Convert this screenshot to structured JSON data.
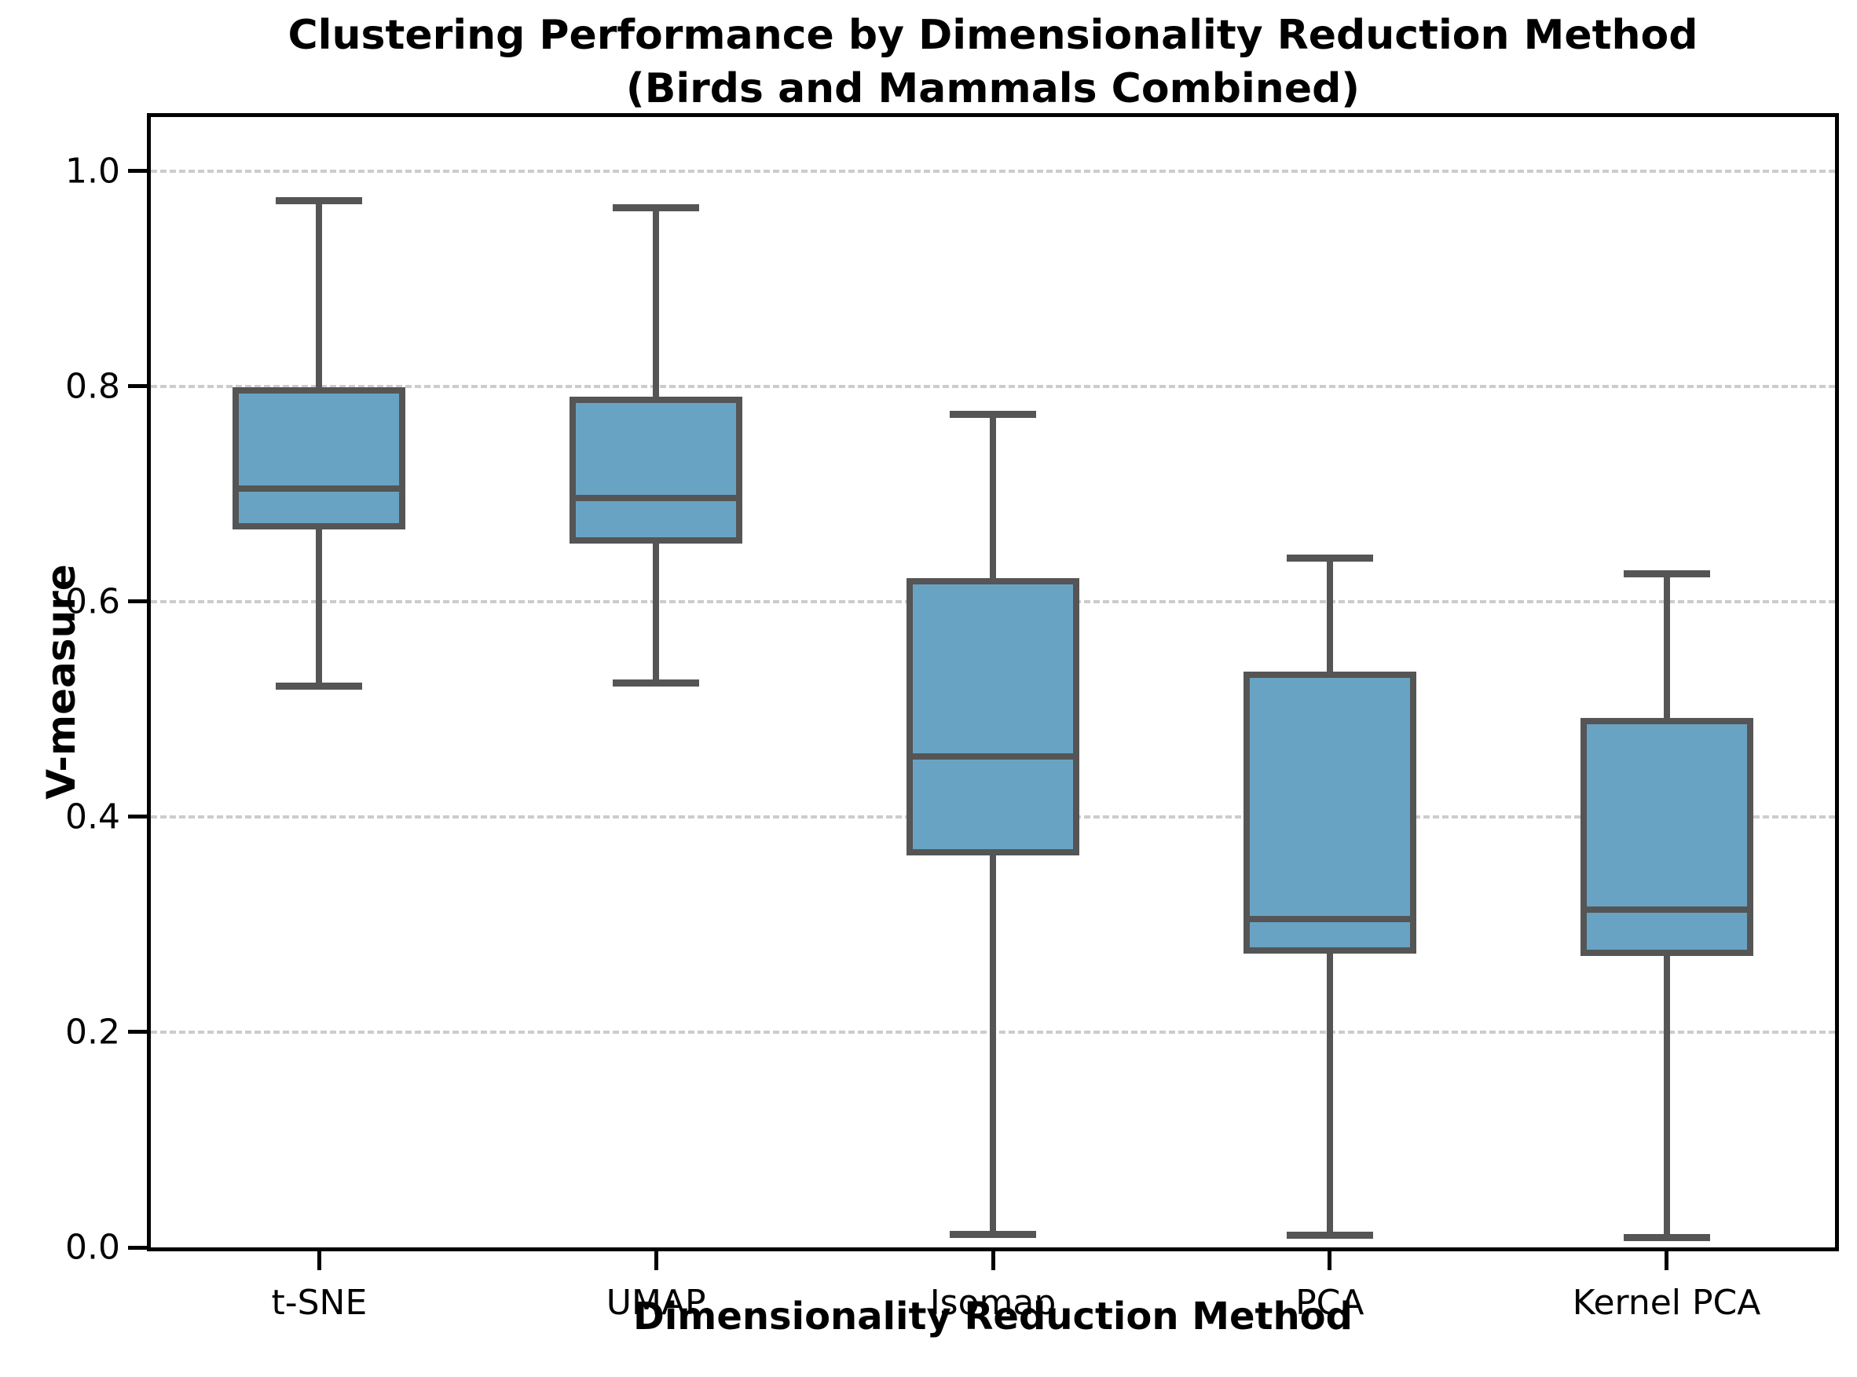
{
  "header": {
    "title_line1": "Clustering Performance by Dimensionality Reduction Method",
    "title_line2": "(Birds and Mammals Combined)"
  },
  "axes": {
    "y_label": "V-measure",
    "x_label": "Dimensionality Reduction Method",
    "y_ticks": [
      {
        "value": 0.0,
        "label": "0.0"
      },
      {
        "value": 0.2,
        "label": "0.2"
      },
      {
        "value": 0.4,
        "label": "0.4"
      },
      {
        "value": 0.6,
        "label": "0.6"
      },
      {
        "value": 0.8,
        "label": "0.8"
      },
      {
        "value": 1.0,
        "label": "1.0"
      }
    ]
  },
  "chart_data": {
    "type": "boxplot",
    "title": "Clustering Performance by Dimensionality Reduction Method (Birds and Mammals Combined)",
    "xlabel": "Dimensionality Reduction Method",
    "ylabel": "V-measure",
    "ylim": [
      0,
      1.05
    ],
    "grid": "horizontal-dashed",
    "legend": "none",
    "outliers": "none",
    "categories": [
      "t-SNE",
      "UMAP",
      "Isomap",
      "PCA",
      "Kernel PCA"
    ],
    "boxes": [
      {
        "label": "t-SNE",
        "whisker_low": 0.521,
        "q1": 0.667,
        "median": 0.705,
        "q3": 0.799,
        "whisker_high": 0.972
      },
      {
        "label": "UMAP",
        "whisker_low": 0.524,
        "q1": 0.654,
        "median": 0.696,
        "q3": 0.79,
        "whisker_high": 0.966
      },
      {
        "label": "Isomap",
        "whisker_low": 0.012,
        "q1": 0.364,
        "median": 0.456,
        "q3": 0.622,
        "whisker_high": 0.774
      },
      {
        "label": "PCA",
        "whisker_low": 0.011,
        "q1": 0.273,
        "median": 0.305,
        "q3": 0.535,
        "whisker_high": 0.64
      },
      {
        "label": "Kernel PCA",
        "whisker_low": 0.009,
        "q1": 0.271,
        "median": 0.314,
        "q3": 0.492,
        "whisker_high": 0.626
      }
    ]
  },
  "colors": {
    "box_fill": "#69a3c3",
    "box_edge": "#555555",
    "gridline": "#cccccc",
    "axis": "#000000",
    "background": "#ffffff"
  }
}
